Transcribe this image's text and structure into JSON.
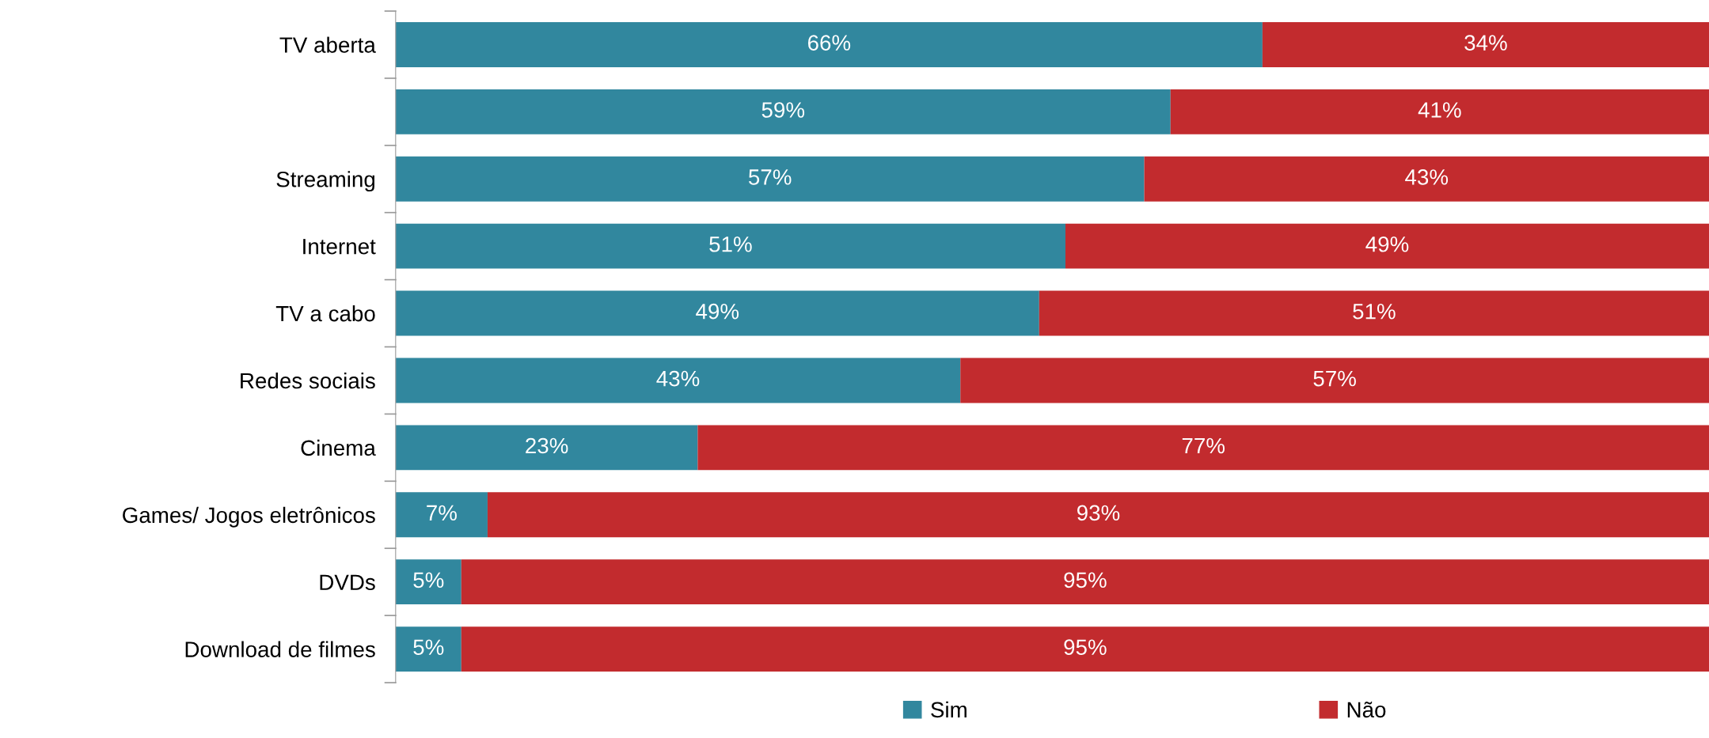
{
  "chart_data": {
    "type": "bar",
    "orientation": "horizontal",
    "stacked": true,
    "legend": "bottom",
    "grid": false,
    "categories": [
      "TV aberta",
      null,
      "Streaming",
      "Internet",
      "TV a cabo",
      "Redes sociais",
      "Cinema",
      "Games/ Jogos eletrônicos",
      "DVDs",
      "Download de filmes"
    ],
    "series": [
      {
        "name": "Sim",
        "color": "#31879e",
        "values": [
          66,
          59,
          57,
          51,
          49,
          43,
          23,
          7,
          5,
          5
        ],
        "value_labels": [
          "66%",
          "59%",
          "57%",
          "51%",
          "49%",
          "43%",
          "23%",
          "7%",
          "5%",
          "5%"
        ]
      },
      {
        "name": "Não",
        "color": "#c22b2e",
        "values": [
          34,
          41,
          43,
          49,
          51,
          57,
          77,
          93,
          95,
          95
        ],
        "value_labels": [
          "34%",
          "41%",
          "43%",
          "49%",
          "51%",
          "57%",
          "77%",
          "93%",
          "95%",
          "95%"
        ]
      }
    ]
  }
}
